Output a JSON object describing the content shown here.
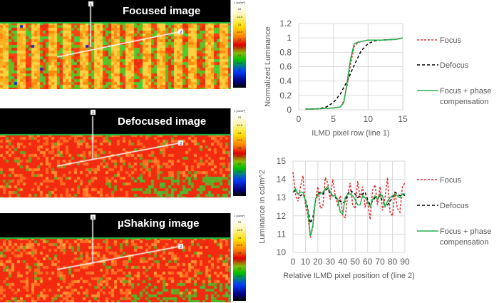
{
  "panels": [
    {
      "title": "Focused image",
      "style": "focused",
      "marker1": "1",
      "marker2": "2"
    },
    {
      "title": "Defocused image",
      "style": "defocused",
      "marker1": "1",
      "marker2": "2"
    },
    {
      "title": "µShaking image",
      "style": "shaking",
      "marker1": "1",
      "marker2": "2"
    }
  ],
  "colorbar": {
    "unit": "L [cd/m²]",
    "labels": [
      "15",
      "14.5",
      "14",
      "13.5",
      "13",
      "12.5",
      "12",
      "11.5",
      "11",
      "10.5",
      "10"
    ]
  },
  "colors": {
    "focus": "#e03030",
    "defocus": "#000000",
    "phase": "#22b14c"
  },
  "chart_data": [
    {
      "type": "line",
      "xlabel": "ILMD pixel row (line 1)",
      "ylabel": "Normalized Luminance",
      "xlim": [
        0,
        15
      ],
      "ylim": [
        0,
        1.2
      ],
      "xticks": [
        "0",
        "5",
        "10",
        "15"
      ],
      "yticks": [
        "0",
        "0.2",
        "0.4",
        "0.6",
        "0.8",
        "1",
        "1.2"
      ],
      "grid": true,
      "legend": "right",
      "series": [
        {
          "name": "Focus",
          "x": [
            1,
            2,
            3,
            4,
            5,
            6,
            6.5,
            7,
            7.5,
            8,
            8.5,
            9,
            10,
            11,
            12,
            13,
            14,
            15
          ],
          "y": [
            0.01,
            0.01,
            0.015,
            0.02,
            0.025,
            0.04,
            0.12,
            0.35,
            0.65,
            0.88,
            0.93,
            0.95,
            0.97,
            0.97,
            0.97,
            0.975,
            0.98,
            1.0
          ]
        },
        {
          "name": "Defocus",
          "x": [
            1,
            2,
            3,
            4,
            5,
            6,
            7,
            8,
            9,
            10,
            11,
            12,
            13,
            14,
            15
          ],
          "y": [
            0.01,
            0.012,
            0.015,
            0.04,
            0.1,
            0.22,
            0.4,
            0.62,
            0.82,
            0.92,
            0.96,
            0.97,
            0.975,
            0.98,
            1.0
          ]
        },
        {
          "name": "Focus + phase compensation",
          "x": [
            1,
            2,
            3,
            4,
            5,
            6,
            6.5,
            7,
            7.5,
            8,
            8.5,
            9,
            10,
            11,
            12,
            13,
            14,
            15
          ],
          "y": [
            0.01,
            0.01,
            0.015,
            0.02,
            0.025,
            0.04,
            0.1,
            0.4,
            0.72,
            0.92,
            0.94,
            0.95,
            0.97,
            0.97,
            0.97,
            0.975,
            0.98,
            1.0
          ]
        }
      ]
    },
    {
      "type": "line",
      "xlabel": "Relative ILMD pixel position of (line 2)",
      "ylabel": "Luminance in cd/m^2",
      "xlim": [
        0,
        90
      ],
      "ylim": [
        10,
        15
      ],
      "xticks": [
        "0",
        "10",
        "20",
        "30",
        "40",
        "50",
        "60",
        "70",
        "80",
        "90"
      ],
      "yticks": [
        "10",
        "11",
        "12",
        "13",
        "14",
        "15"
      ],
      "grid": true,
      "legend": "right",
      "x_step": 2,
      "series": [
        {
          "name": "Focus",
          "y": [
            14.4,
            13.2,
            12.8,
            13.6,
            14.2,
            12.6,
            12.0,
            10.8,
            11.4,
            12.8,
            13.6,
            12.4,
            12.5,
            14.1,
            13.8,
            12.9,
            14.0,
            13.1,
            12.6,
            13.1,
            12.0,
            11.9,
            13.2,
            13.8,
            12.6,
            12.4,
            13.9,
            13.0,
            13.6,
            12.5,
            12.8,
            11.8,
            13.4,
            13.7,
            12.6,
            13.6,
            12.3,
            13.0,
            14.1,
            12.2,
            12.0,
            13.3,
            12.4,
            12.2,
            13.6,
            13.8
          ]
        },
        {
          "name": "Defocus",
          "y": [
            13.3,
            13.4,
            13.2,
            13.1,
            13.2,
            12.9,
            12.4,
            11.6,
            11.9,
            12.8,
            13.2,
            13.3,
            13.2,
            13.4,
            13.5,
            13.2,
            13.1,
            13.0,
            12.9,
            12.8,
            12.7,
            12.8,
            13.2,
            13.4,
            13.3,
            13.2,
            13.0,
            13.1,
            13.2,
            13.3,
            12.9,
            12.6,
            12.8,
            13.0,
            13.0,
            13.1,
            12.8,
            12.6,
            12.6,
            12.8,
            13.0,
            13.3,
            13.2,
            13.1,
            13.2,
            13.1
          ]
        },
        {
          "name": "Focus + phase compensation",
          "y": [
            13.3,
            13.5,
            13.2,
            13.3,
            13.3,
            12.8,
            12.3,
            10.9,
            11.5,
            12.9,
            13.2,
            13.2,
            13.3,
            13.5,
            13.6,
            13.3,
            13.1,
            13.1,
            12.9,
            12.2,
            12.1,
            13.0,
            13.2,
            13.2,
            13.1,
            12.9,
            12.6,
            12.6,
            13.1,
            13.0,
            12.8,
            12.5,
            12.9,
            13.1,
            12.9,
            13.2,
            13.1,
            12.5,
            12.8,
            13.0,
            13.1,
            13.2,
            13.1,
            13.0,
            13.2,
            13.2
          ]
        }
      ]
    }
  ]
}
